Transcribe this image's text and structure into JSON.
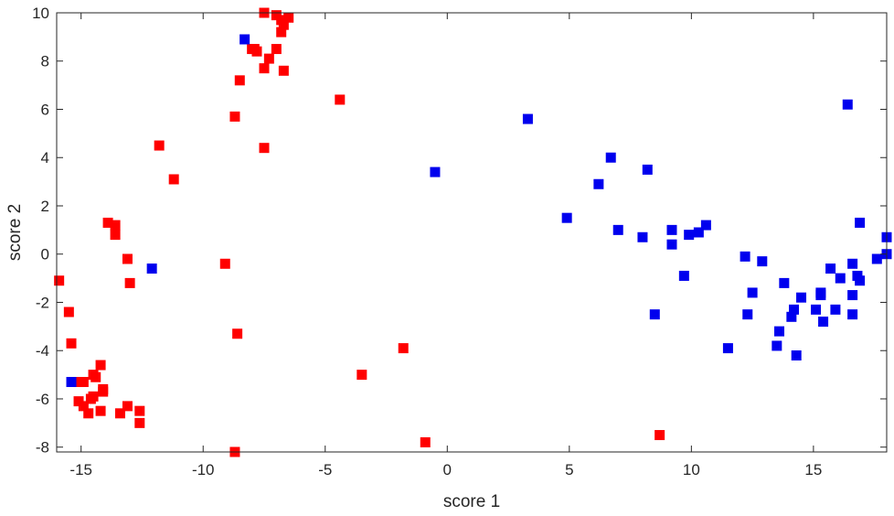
{
  "chart_data": {
    "type": "scatter",
    "xlabel": "score 1",
    "ylabel": "score 2",
    "xlim": [
      -16,
      18
    ],
    "ylim": [
      -8.2,
      10
    ],
    "xticks": [
      -15,
      -10,
      -5,
      0,
      5,
      10,
      15
    ],
    "yticks": [
      -8,
      -6,
      -4,
      -2,
      0,
      2,
      4,
      6,
      8,
      10
    ],
    "xtick_labels": [
      "-15",
      "-10",
      "-5",
      "0",
      "5",
      "10",
      "15"
    ],
    "ytick_labels": [
      "-8",
      "-6",
      "-4",
      "-2",
      "0",
      "2",
      "4",
      "6",
      "8",
      "10"
    ],
    "grid": false,
    "marker": "square",
    "series": [
      {
        "color": "#ff0000",
        "points": [
          [
            -7.5,
            10.0
          ],
          [
            -7.0,
            9.9
          ],
          [
            -6.8,
            9.7
          ],
          [
            -6.7,
            9.5
          ],
          [
            -6.5,
            9.8
          ],
          [
            -6.8,
            9.2
          ],
          [
            -8.0,
            8.5
          ],
          [
            -7.8,
            8.4
          ],
          [
            -7.9,
            8.5
          ],
          [
            -7.0,
            8.5
          ],
          [
            -7.3,
            8.1
          ],
          [
            -7.5,
            7.7
          ],
          [
            -6.7,
            7.6
          ],
          [
            -8.5,
            7.2
          ],
          [
            -8.7,
            5.7
          ],
          [
            -4.4,
            6.4
          ],
          [
            -7.5,
            4.4
          ],
          [
            -11.8,
            4.5
          ],
          [
            -11.2,
            3.1
          ],
          [
            -13.9,
            1.3
          ],
          [
            -13.6,
            1.2
          ],
          [
            -13.6,
            0.8
          ],
          [
            -13.1,
            -0.2
          ],
          [
            -13.0,
            -1.2
          ],
          [
            -9.1,
            -0.4
          ],
          [
            -15.9,
            -1.1
          ],
          [
            -15.5,
            -2.4
          ],
          [
            -15.4,
            -3.7
          ],
          [
            -8.6,
            -3.3
          ],
          [
            -1.8,
            -3.9
          ],
          [
            -3.5,
            -5.0
          ],
          [
            -15.1,
            -5.3
          ],
          [
            -14.9,
            -5.3
          ],
          [
            -14.5,
            -5.0
          ],
          [
            -14.4,
            -5.1
          ],
          [
            -14.2,
            -4.6
          ],
          [
            -14.1,
            -5.6
          ],
          [
            -14.1,
            -5.7
          ],
          [
            -14.6,
            -6.0
          ],
          [
            -14.5,
            -5.9
          ],
          [
            -15.1,
            -6.1
          ],
          [
            -14.9,
            -6.3
          ],
          [
            -14.7,
            -6.6
          ],
          [
            -14.2,
            -6.5
          ],
          [
            -13.4,
            -6.6
          ],
          [
            -13.1,
            -6.3
          ],
          [
            -12.6,
            -6.5
          ],
          [
            -12.6,
            -7.0
          ],
          [
            -0.9,
            -7.8
          ],
          [
            8.7,
            -7.5
          ],
          [
            -8.7,
            -8.2
          ]
        ]
      },
      {
        "color": "#0000ee",
        "points": [
          [
            -8.3,
            8.9
          ],
          [
            -0.5,
            3.4
          ],
          [
            3.3,
            5.6
          ],
          [
            -12.1,
            -0.6
          ],
          [
            -15.4,
            -5.3
          ],
          [
            4.9,
            1.5
          ],
          [
            6.2,
            2.9
          ],
          [
            6.7,
            4.0
          ],
          [
            7.0,
            1.0
          ],
          [
            8.0,
            0.7
          ],
          [
            8.2,
            3.5
          ],
          [
            8.5,
            -2.5
          ],
          [
            9.2,
            1.0
          ],
          [
            9.2,
            0.4
          ],
          [
            9.7,
            -0.9
          ],
          [
            9.9,
            0.8
          ],
          [
            10.3,
            0.9
          ],
          [
            10.6,
            1.2
          ],
          [
            11.5,
            -3.9
          ],
          [
            12.2,
            -0.1
          ],
          [
            12.3,
            -2.5
          ],
          [
            12.5,
            -1.6
          ],
          [
            12.9,
            -0.3
          ],
          [
            13.5,
            -3.8
          ],
          [
            13.6,
            -3.2
          ],
          [
            13.8,
            -1.2
          ],
          [
            14.1,
            -2.6
          ],
          [
            14.2,
            -2.3
          ],
          [
            14.3,
            -4.2
          ],
          [
            14.5,
            -1.8
          ],
          [
            15.1,
            -2.3
          ],
          [
            15.3,
            -1.7
          ],
          [
            15.3,
            -1.6
          ],
          [
            15.4,
            -2.8
          ],
          [
            15.7,
            -0.6
          ],
          [
            15.9,
            -2.3
          ],
          [
            16.1,
            -1.0
          ],
          [
            16.4,
            6.2
          ],
          [
            16.6,
            -0.4
          ],
          [
            16.6,
            -2.5
          ],
          [
            16.6,
            -1.7
          ],
          [
            16.8,
            -0.9
          ],
          [
            16.9,
            -1.1
          ],
          [
            16.9,
            1.3
          ],
          [
            17.6,
            -0.2
          ],
          [
            18.0,
            0.7
          ],
          [
            18.0,
            0.0
          ]
        ]
      }
    ]
  }
}
